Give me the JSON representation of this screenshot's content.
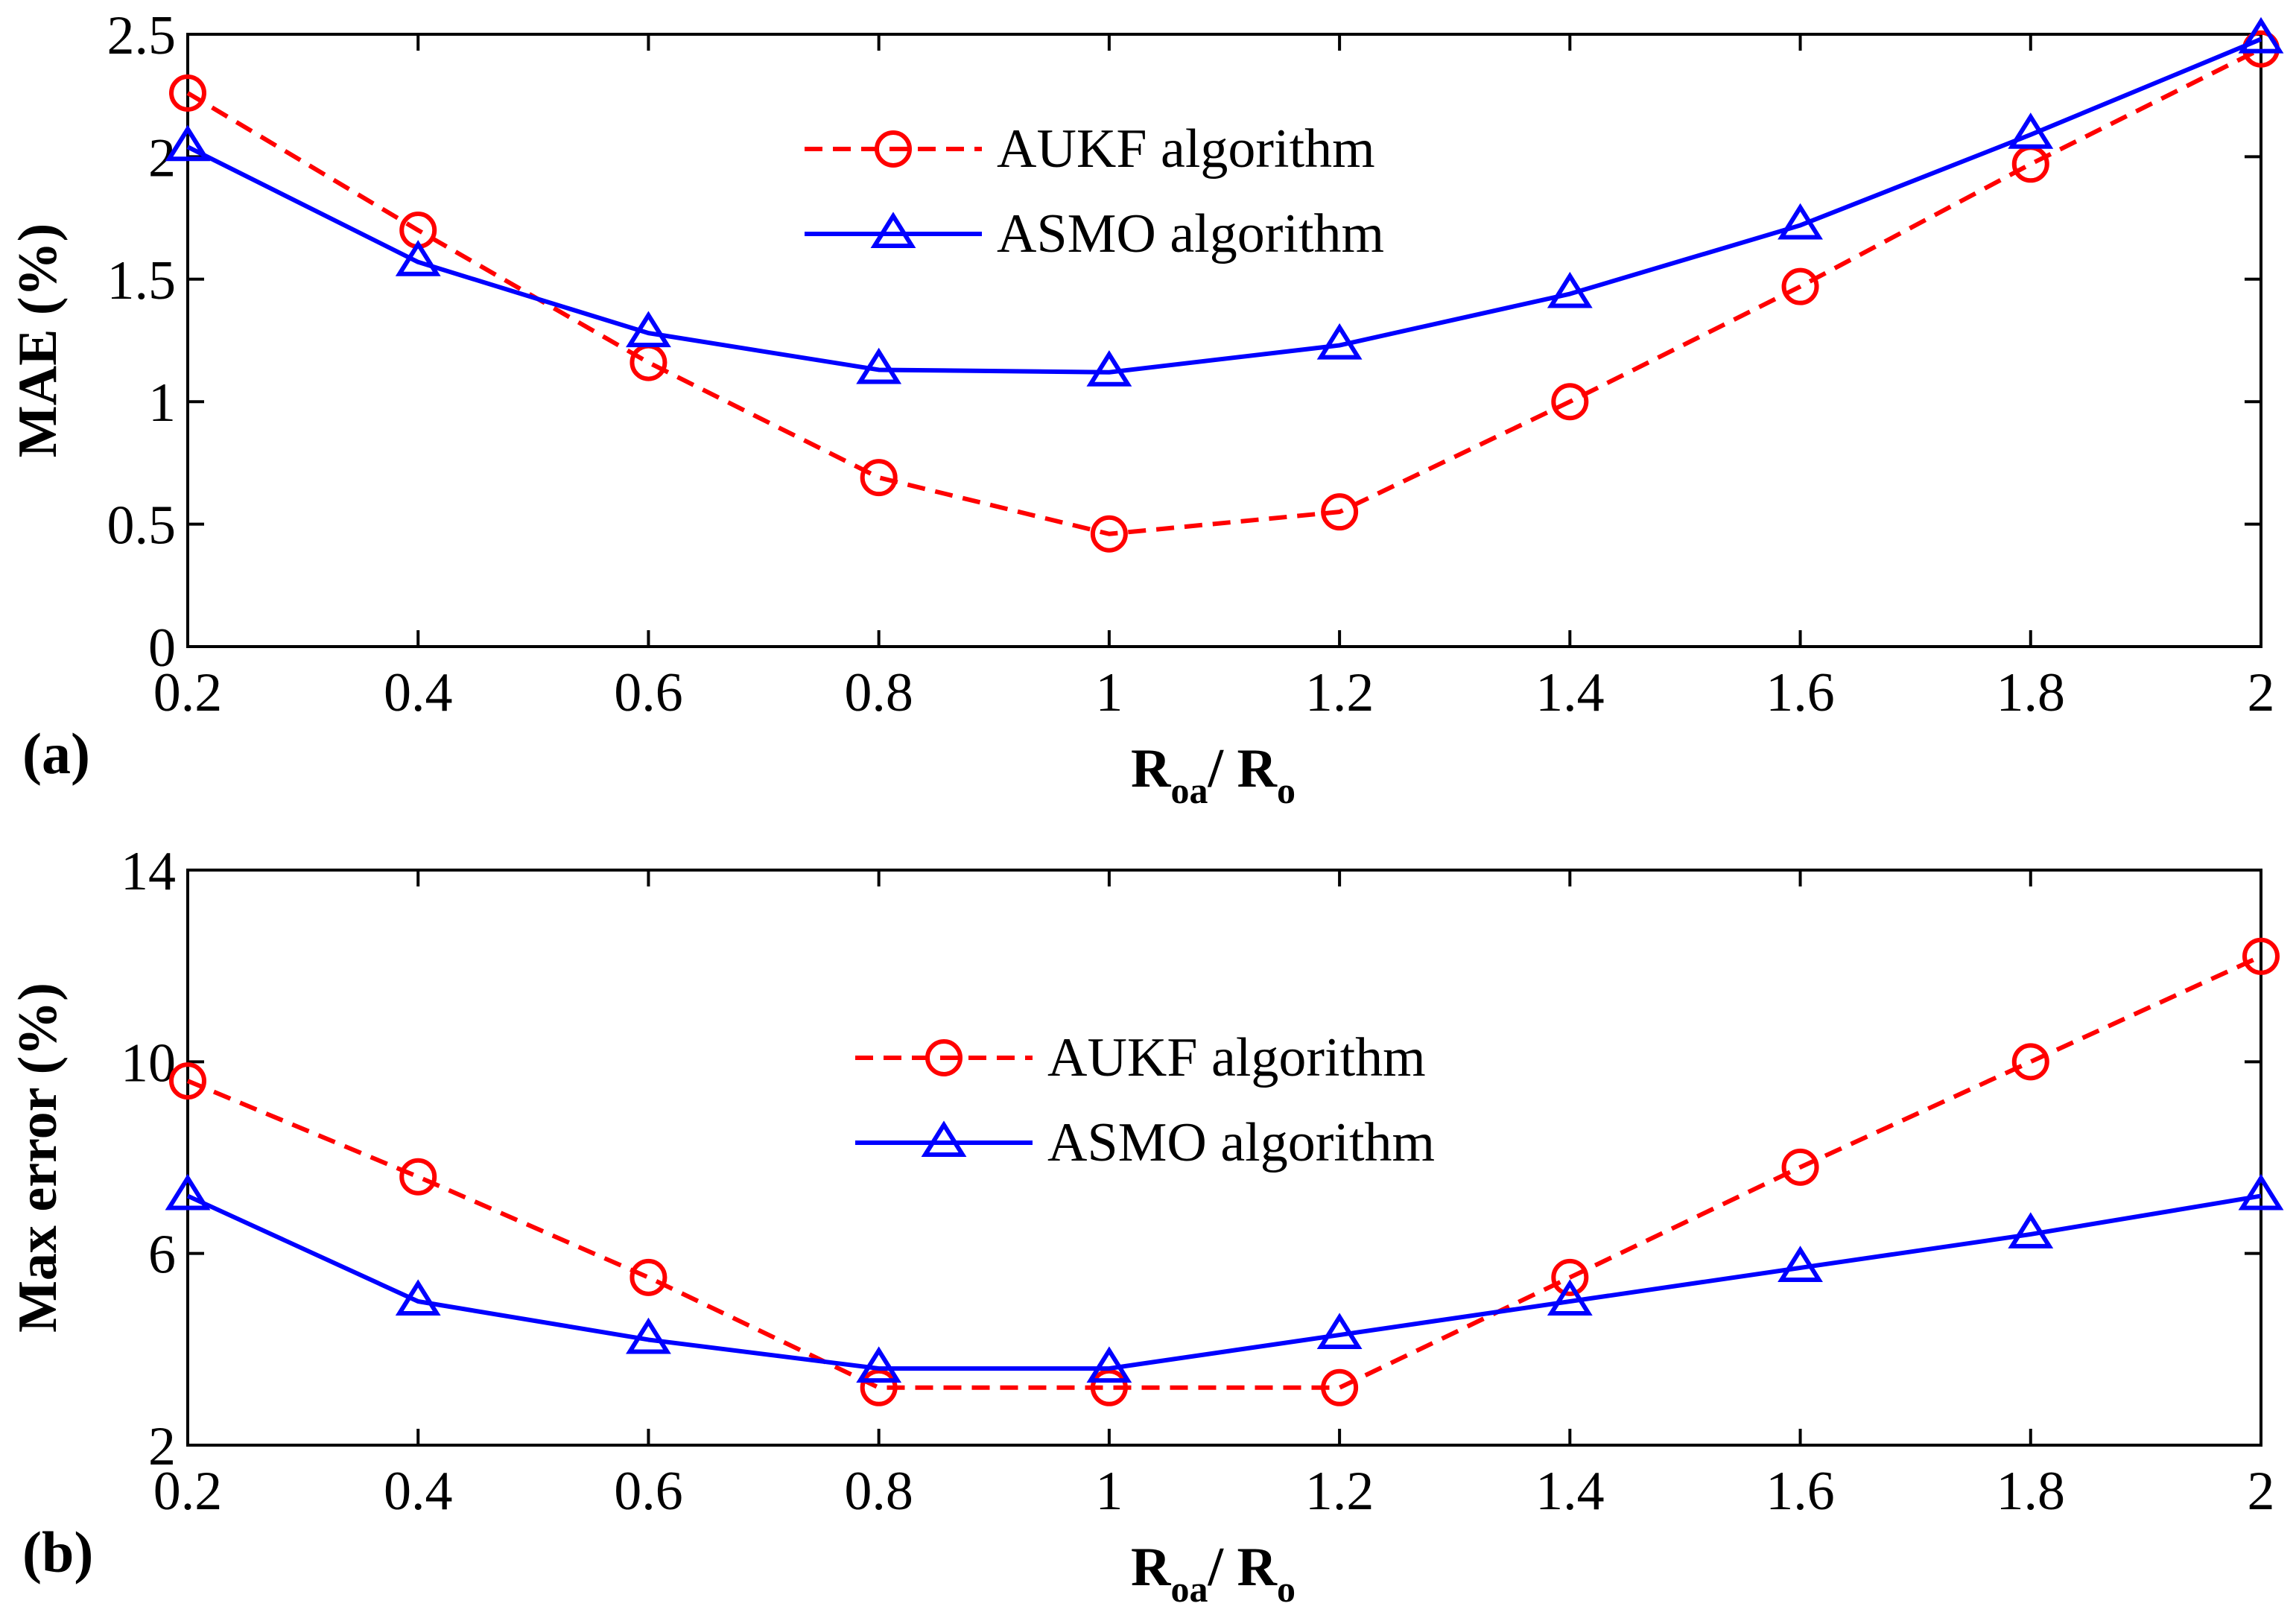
{
  "chart_data": [
    {
      "type": "line",
      "panel_label": "(a)",
      "x": [
        0.2,
        0.4,
        0.6,
        0.8,
        1,
        1.2,
        1.4,
        1.6,
        1.8,
        2
      ],
      "xticks": [
        "0.2",
        "0.4",
        "0.6",
        "0.8",
        "1",
        "1.2",
        "1.4",
        "1.6",
        "1.8",
        "2"
      ],
      "xlim": [
        0.2,
        2
      ],
      "ylim": [
        0,
        2.5
      ],
      "yticks": [
        {
          "value": 0,
          "label": "0"
        },
        {
          "value": 0.5,
          "label": "0.5"
        },
        {
          "value": 1,
          "label": "1"
        },
        {
          "value": 1.5,
          "label": "1.5"
        },
        {
          "value": 2,
          "label": "2"
        },
        {
          "value": 2.5,
          "label": "2.5"
        }
      ],
      "ylabel": "MAE (%)",
      "xlabel": {
        "main1": "R",
        "sub1": "oa",
        "main2": "/ R",
        "sub2": "o"
      },
      "legend_position": "top-center",
      "series": [
        {
          "name": "AUKF algorithm",
          "color": "#ff0000",
          "style": "dashed",
          "marker": "circle",
          "values": [
            2.26,
            1.7,
            1.16,
            0.69,
            0.46,
            0.55,
            1.0,
            1.47,
            1.97,
            2.44
          ]
        },
        {
          "name": "ASMO algorithm",
          "color": "#0000ff",
          "style": "solid",
          "marker": "triangle",
          "values": [
            2.04,
            1.57,
            1.28,
            1.13,
            1.12,
            1.23,
            1.44,
            1.72,
            2.09,
            2.48
          ]
        }
      ]
    },
    {
      "type": "line",
      "panel_label": "(b)",
      "x": [
        0.2,
        0.4,
        0.6,
        0.8,
        1,
        1.2,
        1.4,
        1.6,
        1.8,
        2
      ],
      "xticks": [
        "0.2",
        "0.4",
        "0.6",
        "0.8",
        "1",
        "1.2",
        "1.4",
        "1.6",
        "1.8",
        "2"
      ],
      "xlim": [
        0.2,
        2
      ],
      "ylim": [
        2,
        14
      ],
      "yticks": [
        {
          "value": 2,
          "label": "2"
        },
        {
          "value": 6,
          "label": "6"
        },
        {
          "value": 10,
          "label": "10"
        },
        {
          "value": 14,
          "label": "14"
        }
      ],
      "ylabel": "Max error (%)",
      "xlabel": {
        "main1": "R",
        "sub1": "oa",
        "main2": "/ R",
        "sub2": "o"
      },
      "legend_position": "top-center",
      "series": [
        {
          "name": "AUKF algorithm",
          "color": "#ff0000",
          "style": "dashed",
          "marker": "circle",
          "values": [
            9.6,
            7.6,
            5.5,
            3.2,
            3.2,
            3.2,
            5.5,
            7.8,
            10.0,
            12.2
          ]
        },
        {
          "name": "ASMO algorithm",
          "color": "#0000ff",
          "style": "solid",
          "marker": "triangle",
          "values": [
            7.2,
            5.0,
            4.2,
            3.6,
            3.6,
            4.3,
            5.0,
            5.7,
            6.4,
            7.2
          ]
        }
      ]
    }
  ]
}
